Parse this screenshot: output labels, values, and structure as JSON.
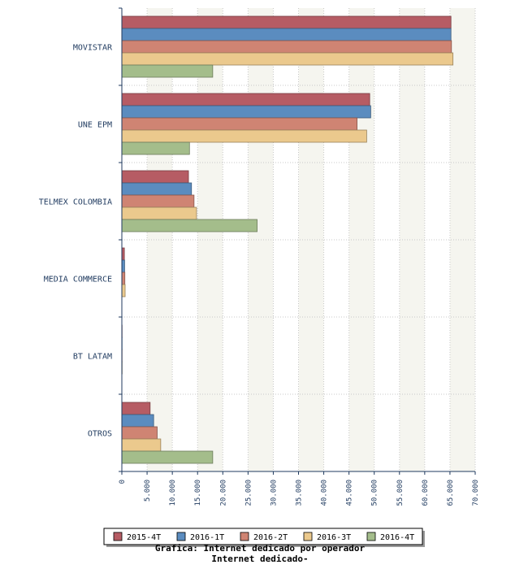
{
  "chart_data": {
    "type": "bar",
    "orientation": "horizontal",
    "categories": [
      "MOVISTAR",
      "UNE EPM",
      "TELMEX COLOMBIA",
      "MEDIA COMMERCE",
      "BT LATAM",
      "OTROS"
    ],
    "series": [
      {
        "name": "2015-4T",
        "color": "#b65c64",
        "values": [
          65200,
          49100,
          13200,
          500,
          50,
          5600
        ]
      },
      {
        "name": "2016-1T",
        "color": "#5b8cbf",
        "values": [
          65200,
          49300,
          13800,
          550,
          50,
          6300
        ]
      },
      {
        "name": "2016-2T",
        "color": "#cf8473",
        "values": [
          65300,
          46600,
          14300,
          600,
          50,
          7000
        ]
      },
      {
        "name": "2016-3T",
        "color": "#ebc98d",
        "values": [
          65600,
          48500,
          14800,
          650,
          60,
          7700
        ]
      },
      {
        "name": "2016-4T",
        "color": "#a4bd8b",
        "values": [
          18000,
          13400,
          26800,
          0,
          0,
          18000
        ]
      }
    ],
    "x_ticks": [
      "0",
      "5.000",
      "10.000",
      "15.000",
      "20.000",
      "25.000",
      "30.000",
      "35.000",
      "40.000",
      "45.000",
      "50.000",
      "55.000",
      "60.000",
      "65.000",
      "70.000"
    ],
    "xlim": [
      0,
      70000
    ],
    "grid": true,
    "legend_position": "bottom",
    "caption_lines": [
      "Grafica: Internet dedicado por operador",
      "Internet dedicado-"
    ]
  }
}
